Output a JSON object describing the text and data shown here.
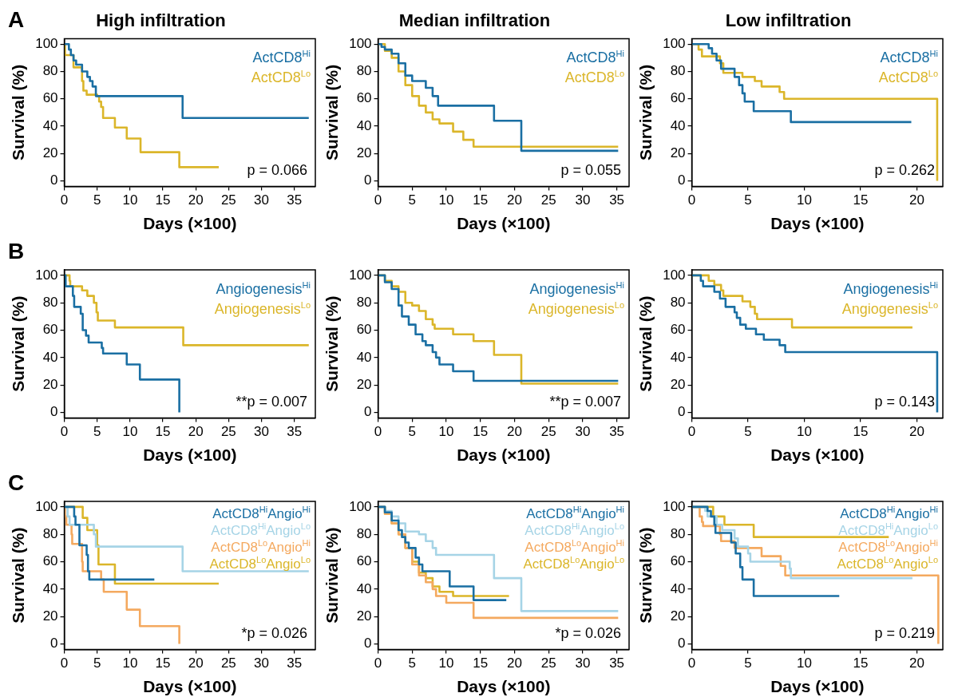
{
  "chart_data": [
    {
      "type": "step",
      "title": "High infiltration",
      "xlabel": "Days (×100)",
      "ylabel": "Survival (%)",
      "xlim": [
        0,
        38.2
      ],
      "xticks": [
        0,
        5,
        10,
        15,
        20,
        25,
        30,
        35
      ],
      "ylim": [
        -4,
        104
      ],
      "yticks": [
        0,
        20,
        40,
        60,
        80,
        100
      ],
      "legend": "top right",
      "annotations": [
        "A",
        "p = 0.066"
      ],
      "series": [
        {
          "name": "ActCD8$^{Hi}$",
          "color": "#1a6fa3",
          "x": [
            0,
            0.7,
            1.0,
            1.4,
            1.8,
            2.7,
            3.5,
            3.9,
            4.3,
            4.8,
            18,
            37.2
          ],
          "values": [
            100,
            96,
            92,
            88,
            85,
            80,
            76,
            73,
            69,
            62,
            46,
            46
          ]
        },
        {
          "name": "ActCD8$^{Lo}$",
          "color": "#dbb62a",
          "x": [
            0,
            0.1,
            1.4,
            2.7,
            2.9,
            3.4,
            5.0,
            5.3,
            5.6,
            5.9,
            7.7,
            9.5,
            11.6,
            17.5,
            23.5
          ],
          "values": [
            100,
            92,
            83,
            73,
            66,
            63,
            62,
            58,
            54,
            46,
            39,
            31,
            21,
            10,
            10
          ]
        }
      ]
    },
    {
      "type": "step",
      "title": "Median infiltration",
      "xlabel": "Days (×100)",
      "ylabel": "Survival (%)",
      "xlim": [
        0,
        36.8
      ],
      "xticks": [
        0,
        5,
        10,
        15,
        20,
        25,
        30,
        35
      ],
      "ylim": [
        -4,
        104
      ],
      "yticks": [
        0,
        20,
        40,
        60,
        80,
        100
      ],
      "legend": "top right",
      "annotations": [
        "p = 0.055"
      ],
      "series": [
        {
          "name": "ActCD8$^{Hi}$",
          "color": "#1a6fa3",
          "x": [
            0,
            0.5,
            1,
            2,
            3,
            4,
            5,
            7,
            8,
            8.8,
            17,
            21,
            35.2
          ],
          "values": [
            100,
            98,
            96,
            93,
            86,
            77,
            73,
            68,
            62,
            55,
            44,
            22,
            22
          ]
        },
        {
          "name": "ActCD8$^{Lo}$",
          "color": "#dbb62a",
          "x": [
            0,
            1,
            2,
            3,
            4,
            5,
            6,
            7,
            8,
            9,
            11,
            12.5,
            14,
            35.2
          ],
          "values": [
            100,
            95,
            90,
            80,
            70,
            62,
            55,
            50,
            45,
            42,
            36,
            30,
            25,
            25
          ]
        }
      ]
    },
    {
      "type": "step",
      "title": "Low infiltration",
      "xlabel": "Days (×100)",
      "ylabel": "Survival (%)",
      "xlim": [
        0,
        22.3
      ],
      "xticks": [
        0,
        5,
        10,
        15,
        20
      ],
      "ylim": [
        -4,
        104
      ],
      "yticks": [
        0,
        20,
        40,
        60,
        80,
        100
      ],
      "legend": "top right",
      "annotations": [
        "p = 0.262"
      ],
      "series": [
        {
          "name": "ActCD8$^{Hi}$",
          "color": "#1a6fa3",
          "x": [
            0,
            1.5,
            1.8,
            2.2,
            2.6,
            3.8,
            4.2,
            4.5,
            4.7,
            5.5,
            8.8,
            19.5
          ],
          "values": [
            100,
            97,
            93,
            88,
            82,
            76,
            70,
            64,
            58,
            51,
            43,
            43
          ]
        },
        {
          "name": "ActCD8$^{Lo}$",
          "color": "#dbb62a",
          "x": [
            0,
            0.6,
            0.9,
            2.5,
            2.8,
            4.5,
            5.6,
            6.2,
            7.8,
            8.2,
            21.8
          ],
          "values": [
            100,
            96,
            91,
            86,
            79,
            76,
            73,
            69,
            65,
            60,
            0
          ]
        }
      ]
    },
    {
      "type": "step",
      "xlabel": "Days (×100)",
      "ylabel": "Survival (%)",
      "xlim": [
        0,
        38.2
      ],
      "xticks": [
        0,
        5,
        10,
        15,
        20,
        25,
        30,
        35
      ],
      "ylim": [
        -4,
        104
      ],
      "yticks": [
        0,
        20,
        40,
        60,
        80,
        100
      ],
      "legend": "top right",
      "annotations": [
        "B",
        "**p = 0.007"
      ],
      "series": [
        {
          "name": "Angiogenesis$^{Hi}$",
          "color": "#1a6fa3",
          "x": [
            0,
            0.2,
            1.3,
            1.5,
            2.5,
            2.8,
            3.3,
            3.7,
            5.7,
            5.9,
            9.5,
            11.5,
            17.5
          ],
          "values": [
            100,
            92,
            85,
            77,
            72,
            60,
            56,
            51,
            47,
            43,
            35,
            24,
            0
          ]
        },
        {
          "name": "Angiogenesis$^{Lo}$",
          "color": "#dbb62a",
          "x": [
            0,
            0.8,
            0.9,
            2.7,
            3.5,
            4.5,
            4.9,
            5.1,
            7.7,
            18.1,
            37.2
          ],
          "values": [
            100,
            96,
            92,
            89,
            85,
            80,
            73,
            67,
            62,
            49,
            49
          ]
        }
      ]
    },
    {
      "type": "step",
      "xlabel": "Days (×100)",
      "ylabel": "Survival (%)",
      "xlim": [
        0,
        36.8
      ],
      "xticks": [
        0,
        5,
        10,
        15,
        20,
        25,
        30,
        35
      ],
      "ylim": [
        -4,
        104
      ],
      "yticks": [
        0,
        20,
        40,
        60,
        80,
        100
      ],
      "legend": "top right",
      "annotations": [
        "**p = 0.007"
      ],
      "series": [
        {
          "name": "Angiogenesis$^{Hi}$",
          "color": "#1a6fa3",
          "x": [
            0,
            1,
            2,
            3,
            3.5,
            4.5,
            5.5,
            6.5,
            7,
            8,
            8.5,
            9,
            11,
            14,
            35.2
          ],
          "values": [
            100,
            95,
            90,
            78,
            70,
            64,
            57,
            52,
            49,
            44,
            40,
            35,
            30,
            23,
            23
          ]
        },
        {
          "name": "Angiogenesis$^{Lo}$",
          "color": "#dbb62a",
          "x": [
            0,
            1,
            2,
            3,
            4,
            5,
            6,
            7,
            8,
            8.3,
            11,
            14,
            17,
            21,
            35.2
          ],
          "values": [
            100,
            96,
            92,
            88,
            80,
            78,
            74,
            68,
            64,
            61,
            57,
            52,
            42,
            21,
            21
          ]
        }
      ]
    },
    {
      "type": "step",
      "xlabel": "Days (×100)",
      "ylabel": "Survival (%)",
      "xlim": [
        0,
        22.3
      ],
      "xticks": [
        0,
        5,
        10,
        15,
        20
      ],
      "ylim": [
        -4,
        104
      ],
      "yticks": [
        0,
        20,
        40,
        60,
        80,
        100
      ],
      "legend": "top right",
      "annotations": [
        "p = 0.143"
      ],
      "series": [
        {
          "name": "Angiogenesis$^{Hi}$",
          "color": "#1a6fa3",
          "x": [
            0,
            0.8,
            1,
            2,
            2.5,
            3,
            3.8,
            4,
            4.3,
            4.8,
            5.7,
            6.4,
            7.8,
            8.3,
            21.8
          ],
          "values": [
            100,
            96,
            92,
            88,
            83,
            77,
            73,
            69,
            64,
            61,
            57,
            53,
            49,
            44,
            0
          ]
        },
        {
          "name": "Angiogenesis$^{Lo}$",
          "color": "#dbb62a",
          "x": [
            0,
            1.5,
            2,
            2.6,
            2.8,
            4.5,
            5.2,
            5.6,
            5.8,
            8.9,
            19.6
          ],
          "values": [
            100,
            96,
            93,
            89,
            85,
            81,
            77,
            72,
            68,
            62,
            62
          ]
        }
      ]
    },
    {
      "type": "step",
      "xlabel": "Days (×100)",
      "ylabel": "Survival (%)",
      "xlim": [
        0,
        38.2
      ],
      "xticks": [
        0,
        5,
        10,
        15,
        20,
        25,
        30,
        35
      ],
      "ylim": [
        -4,
        104
      ],
      "yticks": [
        0,
        20,
        40,
        60,
        80,
        100
      ],
      "legend": "top right",
      "annotations": [
        "C",
        "*p = 0.026"
      ],
      "series": [
        {
          "name": "ActCD8$^{Hi}$Angio$^{Hi}$",
          "color": "#1a6fa3",
          "x": [
            0,
            1.5,
            1.7,
            2.3,
            3.4,
            3.6,
            3.8,
            13.7
          ],
          "values": [
            100,
            93,
            87,
            72,
            65,
            53,
            47,
            47
          ]
        },
        {
          "name": "ActCD8$^{Hi}$Angio$^{Lo}$",
          "color": "#a6d4e6",
          "x": [
            0,
            0.5,
            0.8,
            4.5,
            4.8,
            18,
            37.2
          ],
          "values": [
            100,
            93,
            87,
            80,
            71,
            53,
            53
          ]
        },
        {
          "name": "ActCD8$^{Lo}$Angio$^{Hi}$",
          "color": "#f4a95f",
          "x": [
            0,
            0.1,
            0.3,
            1.1,
            1.2,
            2.7,
            2.8,
            5.6,
            6,
            9.5,
            11.5,
            17.5
          ],
          "values": [
            100,
            93,
            87,
            80,
            73,
            60,
            53,
            47,
            38,
            25,
            13,
            0
          ]
        },
        {
          "name": "ActCD8$^{Lo}$Angio$^{Lo}$",
          "color": "#dbb62a",
          "x": [
            0,
            2.8,
            3.5,
            5,
            5.2,
            7.7,
            23.5
          ],
          "values": [
            100,
            92,
            83,
            72,
            58,
            44,
            44
          ]
        }
      ]
    },
    {
      "type": "step",
      "xlabel": "Days (×100)",
      "ylabel": "Survival (%)",
      "xlim": [
        0,
        36.8
      ],
      "xticks": [
        0,
        5,
        10,
        15,
        20,
        25,
        30,
        35
      ],
      "ylim": [
        -4,
        104
      ],
      "yticks": [
        0,
        20,
        40,
        60,
        80,
        100
      ],
      "legend": "top right",
      "annotations": [
        "*p = 0.026"
      ],
      "series": [
        {
          "name": "ActCD8$^{Hi}$Angio$^{Hi}$",
          "color": "#1a6fa3",
          "x": [
            0,
            1,
            2,
            3,
            3.5,
            4,
            4.5,
            5.5,
            6,
            6.5,
            10.5,
            14,
            18.8
          ],
          "values": [
            100,
            96,
            90,
            83,
            78,
            74,
            70,
            63,
            58,
            53,
            42,
            32,
            32
          ]
        },
        {
          "name": "ActCD8$^{Hi}$Angio$^{Lo}$",
          "color": "#a6d4e6",
          "x": [
            0,
            1,
            2,
            3,
            4,
            6,
            7,
            8,
            8.5,
            17,
            21,
            35.2
          ],
          "values": [
            100,
            97,
            93,
            88,
            82,
            80,
            75,
            70,
            65,
            48,
            24,
            24
          ]
        },
        {
          "name": "ActCD8$^{Lo}$Angio$^{Hi}$",
          "color": "#f4a95f",
          "x": [
            0,
            1,
            2,
            3,
            4,
            5,
            6,
            7,
            8,
            8.5,
            10,
            14,
            35.2
          ],
          "values": [
            100,
            95,
            88,
            80,
            70,
            58,
            50,
            45,
            40,
            35,
            30,
            19,
            19
          ]
        },
        {
          "name": "ActCD8$^{Lo}$Angio$^{Lo}$",
          "color": "#dbb62a",
          "x": [
            0,
            1,
            2,
            3,
            4,
            5,
            6,
            7,
            8,
            9,
            11,
            19.2
          ],
          "values": [
            100,
            95,
            88,
            80,
            70,
            60,
            52,
            48,
            42,
            38,
            35,
            35
          ]
        }
      ]
    },
    {
      "type": "step",
      "xlabel": "Days (×100)",
      "ylabel": "Survival (%)",
      "xlim": [
        0,
        22.3
      ],
      "xticks": [
        0,
        5,
        10,
        15,
        20
      ],
      "ylim": [
        -4,
        104
      ],
      "yticks": [
        0,
        20,
        40,
        60,
        80,
        100
      ],
      "legend": "top right",
      "annotations": [
        "p = 0.219"
      ],
      "series": [
        {
          "name": "ActCD8$^{Hi}$Angio$^{Hi}$",
          "color": "#1a6fa3",
          "x": [
            0,
            1.4,
            1.7,
            2,
            2.1,
            3.5,
            3.9,
            4.3,
            4.5,
            5.5,
            13.1
          ],
          "values": [
            100,
            97,
            93,
            87,
            81,
            74,
            66,
            56,
            47,
            35,
            35
          ]
        },
        {
          "name": "ActCD8$^{Hi}$Angio$^{Lo}$",
          "color": "#a6d4e6",
          "x": [
            0,
            1.2,
            1.4,
            2.2,
            2.7,
            3.8,
            4.1,
            5,
            5.2,
            8.7,
            8.8,
            19.6
          ],
          "values": [
            100,
            97,
            93,
            87,
            83,
            77,
            71,
            66,
            60,
            55,
            48,
            48
          ]
        },
        {
          "name": "ActCD8$^{Lo}$Angio$^{Hi}$",
          "color": "#f4a95f",
          "x": [
            0,
            0.7,
            0.9,
            1,
            2.5,
            2.6,
            3.8,
            6.2,
            7.9,
            8.3,
            21.9
          ],
          "values": [
            100,
            93,
            89,
            86,
            80,
            75,
            70,
            64,
            57,
            50,
            0
          ]
        },
        {
          "name": "ActCD8$^{Lo}$Angio$^{Lo}$",
          "color": "#dbb62a",
          "x": [
            0,
            1.9,
            2.9,
            5.5,
            17.5
          ],
          "values": [
            100,
            93,
            87,
            78,
            78
          ]
        }
      ]
    }
  ]
}
